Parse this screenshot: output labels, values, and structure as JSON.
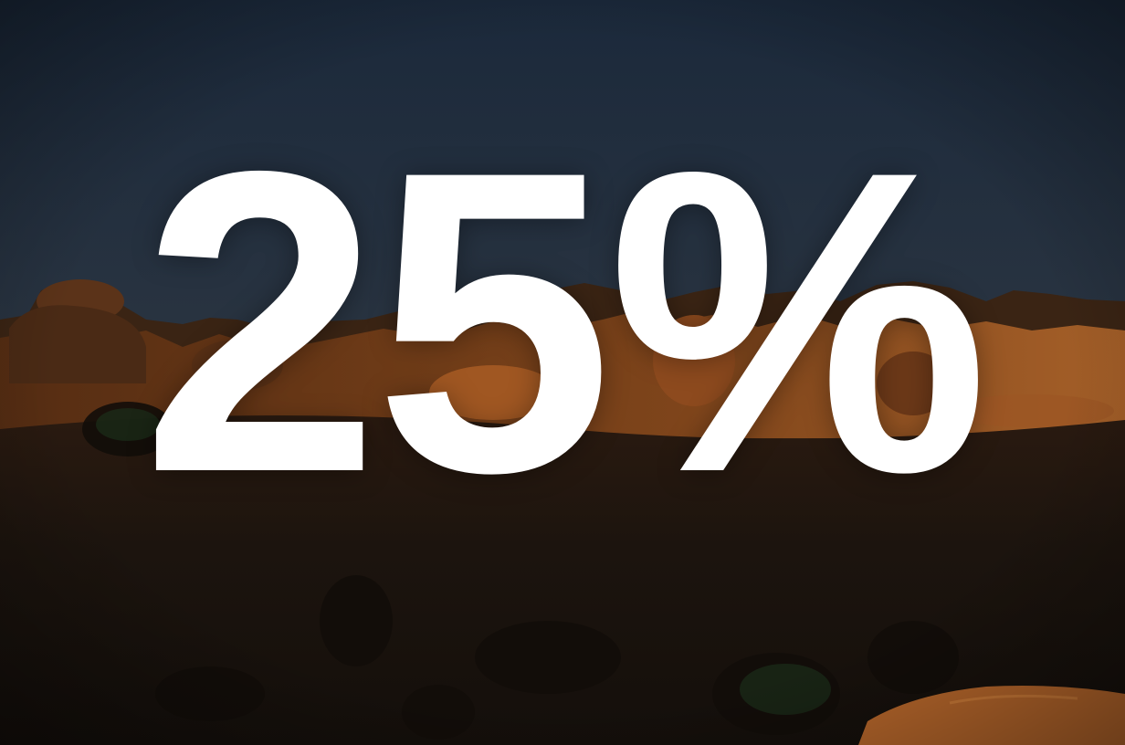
{
  "headline": {
    "value": "25%"
  },
  "scene": {
    "description_icon": "desert-sunset-icon",
    "sky_top_color": "#1d2b3d",
    "sky_horizon_color": "#3b4046",
    "rock_color": "#7a3f17",
    "rock_lit_color": "#c4702f",
    "ground_color": "#1a130e",
    "text_color": "#ffffff"
  }
}
